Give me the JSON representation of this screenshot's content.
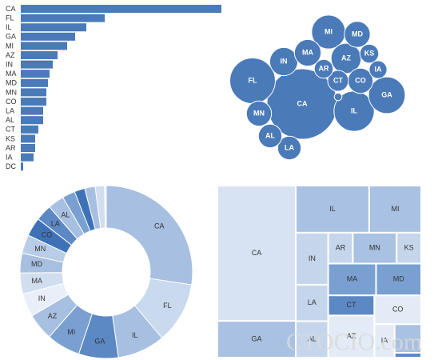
{
  "watermark": "CTOCIO.com",
  "chart_data": [
    {
      "type": "bar",
      "categories": [
        "CA",
        "FL",
        "IL",
        "GA",
        "MI",
        "AZ",
        "IN",
        "MA",
        "MD",
        "MN",
        "CO",
        "LA",
        "AL",
        "CT",
        "KS",
        "AR",
        "IA",
        "DC"
      ],
      "values": [
        251,
        105,
        82,
        68,
        58,
        46,
        40,
        36,
        34,
        32,
        32,
        28,
        28,
        22,
        18,
        18,
        16,
        3
      ],
      "color": "#4a7ab8"
    },
    {
      "type": "bubble",
      "categories": [
        "CA",
        "FL",
        "IL",
        "GA",
        "MI",
        "AZ",
        "IN",
        "MA",
        "MD",
        "MN",
        "CO",
        "LA",
        "AL",
        "CT",
        "KS",
        "AR",
        "IA",
        null
      ],
      "values": [
        251,
        105,
        82,
        68,
        58,
        46,
        40,
        36,
        34,
        32,
        32,
        28,
        28,
        22,
        18,
        18,
        16,
        3
      ],
      "color": "#4a7ab8"
    },
    {
      "type": "donut",
      "categories": [
        "CA",
        "FL",
        "IL",
        "GA",
        "MI",
        "AZ",
        "IN",
        "MA",
        "MD",
        "MN",
        "CO",
        "LA",
        "AL",
        null,
        null,
        null,
        null,
        null
      ],
      "values": [
        251,
        105,
        82,
        68,
        58,
        46,
        40,
        36,
        34,
        32,
        32,
        28,
        28,
        22,
        18,
        18,
        16,
        3
      ],
      "colors": [
        "#a7bfe0",
        "#c9d9ee",
        "#a7bfe0",
        "#5c88c4",
        "#7aa0d2",
        "#a7bfe0",
        "#e8eff8",
        "#d1def0",
        "#a7bfe0",
        "#b9cde8",
        "#3e72b8",
        "#5c88c4",
        "#a7bfe0",
        "#7aa0d2",
        "#3e72b8",
        "#a7bfe0",
        "#d1def0",
        "#eef3fa"
      ]
    },
    {
      "type": "treemap",
      "categories": [
        "CA",
        "GA",
        "IL",
        "MI",
        "IN",
        "LA",
        "AL",
        "AR",
        "MN",
        "KS",
        "MA",
        "MD",
        "CT",
        "AZ",
        "CO",
        "IA",
        null,
        null
      ],
      "values": [
        251,
        68,
        82,
        58,
        40,
        28,
        28,
        18,
        32,
        18,
        36,
        34,
        22,
        46,
        32,
        16,
        18,
        3
      ],
      "colors": [
        "#d7e3f2",
        "#a9c1e2",
        "#a9c1e2",
        "#a9c1e2",
        "#c5d6ec",
        "#c5d6ec",
        "#c5d6ec",
        "#c5d6ec",
        "#a9c1e2",
        "#c5d6ec",
        "#7aa0d2",
        "#7aa0d2",
        "#5c88c4",
        "#e3ebf6",
        "#e3ebf6",
        "#e3ebf6",
        "#a9c1e2",
        "#5c88c4"
      ]
    }
  ]
}
